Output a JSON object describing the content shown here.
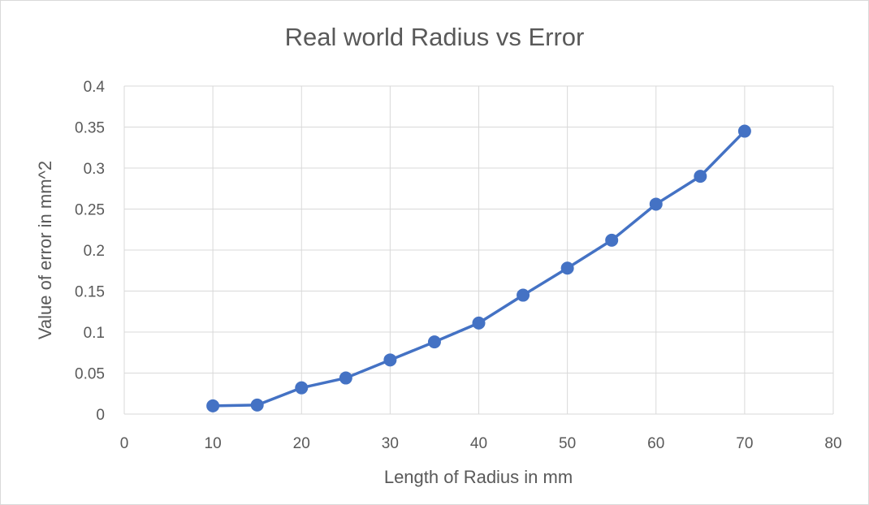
{
  "chart_data": {
    "type": "scatter",
    "title": "Real world Radius vs Error",
    "xlabel": "Length of Radius in mm",
    "ylabel": "Value of error in mm^2",
    "xlim": [
      0,
      80
    ],
    "ylim": [
      0,
      0.4
    ],
    "x_ticks": [
      "0",
      "10",
      "20",
      "30",
      "40",
      "50",
      "60",
      "70",
      "80"
    ],
    "y_ticks": [
      "0",
      "0.05",
      "0.1",
      "0.15",
      "0.2",
      "0.25",
      "0.3",
      "0.35",
      "0.4"
    ],
    "grid": true,
    "legend": "none",
    "series": [
      {
        "color": "#4472c4",
        "x": [
          10,
          15,
          20,
          25,
          30,
          35,
          40,
          45,
          50,
          55,
          60,
          65,
          70
        ],
        "y": [
          0.01,
          0.011,
          0.032,
          0.044,
          0.066,
          0.088,
          0.111,
          0.145,
          0.178,
          0.212,
          0.256,
          0.29,
          0.345
        ]
      }
    ]
  }
}
